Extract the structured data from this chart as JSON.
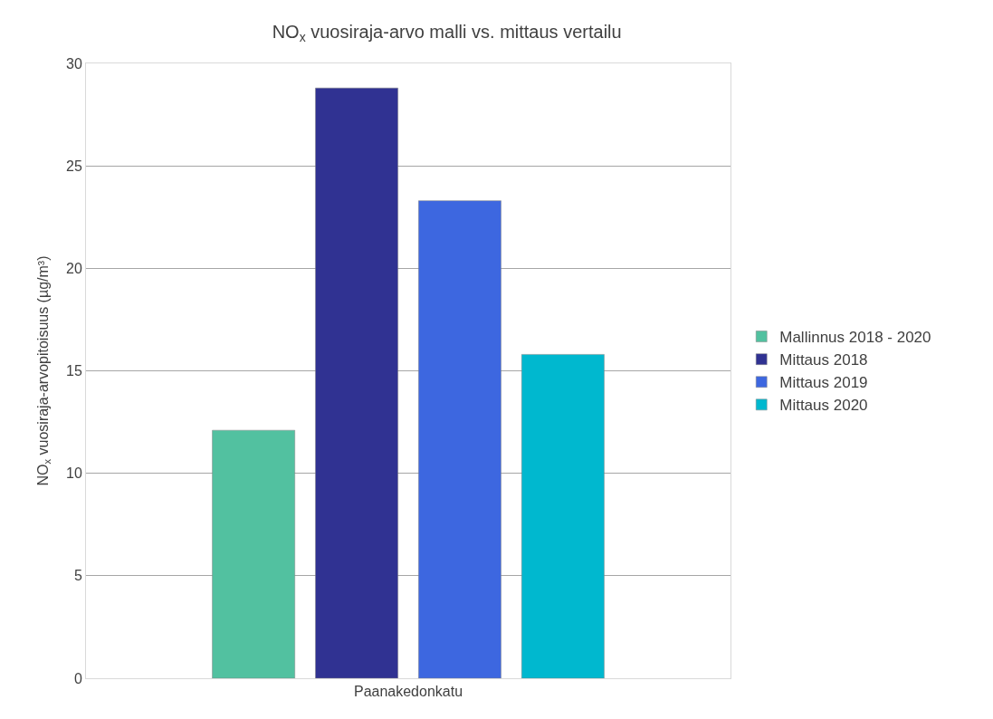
{
  "chart_data": {
    "type": "bar",
    "title": "NO$_{x}$ vuosiraja-arvo malli vs. mittaus vertailu",
    "ylabel": "NO$_{x}$ vuosiraja-arvopitoisuus (µg/m³)",
    "categories": [
      "Paanakedonkatu"
    ],
    "series": [
      {
        "name": "Mallinnus 2018 - 2020",
        "color": "#52c1a0",
        "values": [
          12.1
        ]
      },
      {
        "name": "Mittaus 2018",
        "color": "#303292",
        "values": [
          28.8
        ]
      },
      {
        "name": "Mittaus 2019",
        "color": "#3d67e0",
        "values": [
          23.3
        ]
      },
      {
        "name": "Mittaus 2020",
        "color": "#00b8cf",
        "values": [
          15.8
        ]
      }
    ],
    "ylim": [
      0,
      30
    ],
    "yticks": [
      0,
      5,
      10,
      15,
      20,
      25,
      30
    ],
    "grid": "y",
    "legend": "right"
  }
}
